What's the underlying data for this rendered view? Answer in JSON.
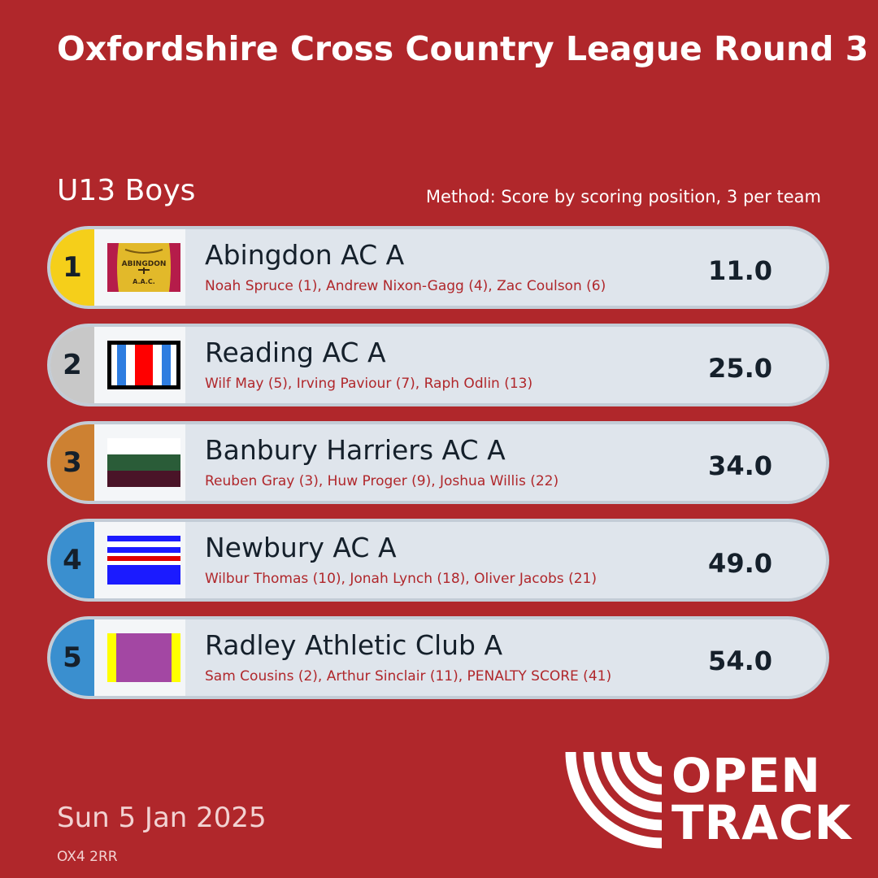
{
  "header": {
    "title": "Oxfordshire Cross Country League Round 3",
    "category": "U13 Boys",
    "method": "Method: Score by scoring position, 3 per team"
  },
  "results": [
    {
      "position": "1",
      "team": "Abingdon AC A",
      "athletes": "Noah Spruce (1), Andrew Nixon-Gagg (4), Zac Coulson (6)",
      "score": "11.0",
      "position_color": "#f5cf1a"
    },
    {
      "position": "2",
      "team": "Reading AC A",
      "athletes": "Wilf May (5), Irving Paviour (7), Raph Odlin (13)",
      "score": "25.0",
      "position_color": "#c8c8c8"
    },
    {
      "position": "3",
      "team": "Banbury Harriers AC A",
      "athletes": "Reuben Gray (3), Huw Proger (9), Joshua Willis (22)",
      "score": "34.0",
      "position_color": "#cd8132"
    },
    {
      "position": "4",
      "team": "Newbury AC A",
      "athletes": "Wilbur Thomas (10), Jonah Lynch (18), Oliver Jacobs (21)",
      "score": "49.0",
      "position_color": "#3a8fcf"
    },
    {
      "position": "5",
      "team": "Radley Athletic Club A",
      "athletes": "Sam Cousins (2), Arthur Sinclair (11), PENALTY SCORE (41)",
      "score": "54.0",
      "position_color": "#3a8fcf"
    }
  ],
  "footer": {
    "date": "Sun 5 Jan 2025",
    "postcode": "OX4 2RR"
  },
  "logo": {
    "line1": "OPEN",
    "line2": "TRACK",
    "badge_lettering": "ABINGDON A.A.C."
  },
  "colors": {
    "background": "#b0272b",
    "row_background": "#dfe5ec",
    "athlete_text": "#b0272b"
  }
}
